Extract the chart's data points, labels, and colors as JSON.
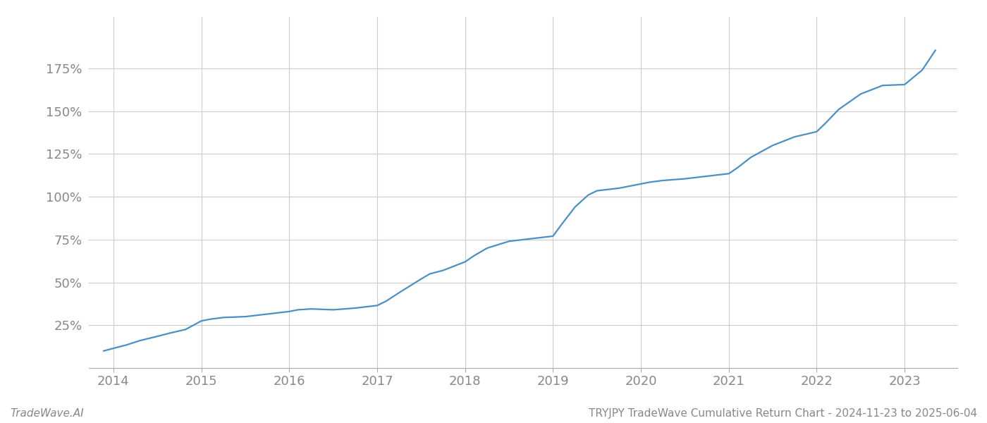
{
  "title": "TRYJPY TradeWave Cumulative Return Chart - 2024-11-23 to 2025-06-04",
  "watermark": "TradeWave.AI",
  "line_color": "#4a90c4",
  "background_color": "#ffffff",
  "grid_color": "#cccccc",
  "x_ticks": [
    2014,
    2015,
    2016,
    2017,
    2018,
    2019,
    2020,
    2021,
    2022,
    2023
  ],
  "y_ticks": [
    25,
    50,
    75,
    100,
    125,
    150,
    175
  ],
  "data_x": [
    2013.89,
    2014.0,
    2014.15,
    2014.3,
    2014.5,
    2014.65,
    2014.82,
    2015.0,
    2015.1,
    2015.25,
    2015.5,
    2015.75,
    2016.0,
    2016.1,
    2016.25,
    2016.5,
    2016.75,
    2017.0,
    2017.1,
    2017.25,
    2017.5,
    2017.6,
    2017.75,
    2018.0,
    2018.1,
    2018.25,
    2018.5,
    2018.75,
    2019.0,
    2019.1,
    2019.25,
    2019.4,
    2019.5,
    2019.75,
    2020.0,
    2020.1,
    2020.25,
    2020.5,
    2020.75,
    2021.0,
    2021.1,
    2021.25,
    2021.5,
    2021.75,
    2022.0,
    2022.1,
    2022.25,
    2022.5,
    2022.75,
    2023.0,
    2023.2,
    2023.35
  ],
  "data_y": [
    10.0,
    11.5,
    13.5,
    16.0,
    18.5,
    20.5,
    22.5,
    27.5,
    28.5,
    29.5,
    30.0,
    31.5,
    33.0,
    34.0,
    34.5,
    34.0,
    35.0,
    36.5,
    39.0,
    44.0,
    52.0,
    55.0,
    57.0,
    62.0,
    65.5,
    70.0,
    74.0,
    75.5,
    77.0,
    84.0,
    94.0,
    101.0,
    103.5,
    105.0,
    107.5,
    108.5,
    109.5,
    110.5,
    112.0,
    113.5,
    117.0,
    123.0,
    130.0,
    135.0,
    138.0,
    143.0,
    151.0,
    160.0,
    165.0,
    165.5,
    174.0,
    185.5
  ],
  "xlim": [
    2013.72,
    2023.6
  ],
  "ylim": [
    0,
    205
  ],
  "tick_color": "#888888",
  "tick_fontsize": 13,
  "footer_fontsize": 11,
  "line_width": 1.6
}
